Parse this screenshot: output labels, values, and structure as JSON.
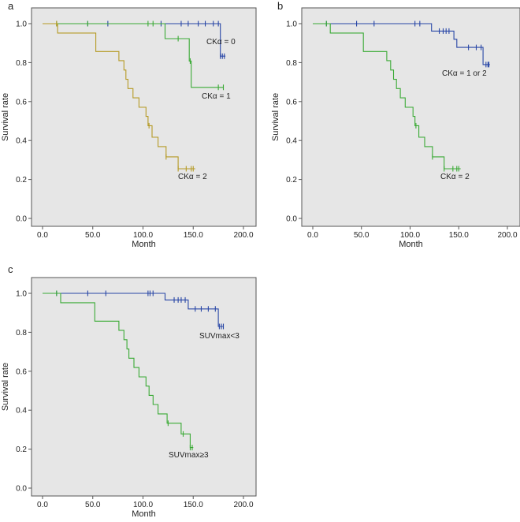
{
  "chart_data": [
    {
      "type": "line",
      "panel_label": "a",
      "xlabel": "Month",
      "ylabel": "Survival rate",
      "xlim": [
        0,
        200
      ],
      "ylim": [
        0,
        1
      ],
      "x_ticks": [
        "0.0",
        "50.0",
        "100.0",
        "150.0",
        "200.0"
      ],
      "y_ticks": [
        "0.0",
        "0.2",
        "0.4",
        "0.6",
        "0.8",
        "1.0"
      ],
      "grid": false,
      "series": [
        {
          "label": "CKα = 0",
          "color": "#2846a6",
          "steps": [
            [
              0,
              1.0
            ],
            [
              177,
              1.0
            ],
            [
              177,
              0.833
            ],
            [
              182,
              0.833
            ]
          ],
          "censors": [
            [
              45,
              1.0
            ],
            [
              65,
              1.0
            ],
            [
              118,
              1.0
            ],
            [
              138,
              1.0
            ],
            [
              145,
              1.0
            ],
            [
              155,
              1.0
            ],
            [
              162,
              1.0
            ],
            [
              170,
              1.0
            ],
            [
              175,
              1.0
            ],
            [
              177,
              0.833
            ],
            [
              179,
              0.833
            ],
            [
              181,
              0.833
            ]
          ]
        },
        {
          "label": "CKα = 1",
          "color": "#3aaa35",
          "steps": [
            [
              0,
              1.0
            ],
            [
              122,
              1.0
            ],
            [
              122,
              0.923
            ],
            [
              146,
              0.923
            ],
            [
              146,
              0.808
            ],
            [
              148,
              0.808
            ],
            [
              148,
              0.673
            ],
            [
              180,
              0.673
            ]
          ],
          "censors": [
            [
              14,
              1.0
            ],
            [
              45,
              1.0
            ],
            [
              105,
              1.0
            ],
            [
              110,
              1.0
            ],
            [
              135,
              0.923
            ],
            [
              147,
              0.808
            ],
            [
              175,
              0.673
            ],
            [
              180,
              0.673
            ]
          ]
        },
        {
          "label": "CKα = 2",
          "color": "#b59a25",
          "steps": [
            [
              0,
              1.0
            ],
            [
              15,
              1.0
            ],
            [
              15,
              0.952
            ],
            [
              53,
              0.952
            ],
            [
              53,
              0.857
            ],
            [
              76,
              0.857
            ],
            [
              76,
              0.81
            ],
            [
              81,
              0.81
            ],
            [
              81,
              0.762
            ],
            [
              83,
              0.762
            ],
            [
              83,
              0.714
            ],
            [
              85,
              0.714
            ],
            [
              85,
              0.667
            ],
            [
              90,
              0.667
            ],
            [
              90,
              0.619
            ],
            [
              96,
              0.619
            ],
            [
              96,
              0.571
            ],
            [
              103,
              0.571
            ],
            [
              103,
              0.524
            ],
            [
              105,
              0.524
            ],
            [
              105,
              0.476
            ],
            [
              109,
              0.476
            ],
            [
              109,
              0.417
            ],
            [
              115,
              0.417
            ],
            [
              115,
              0.369
            ],
            [
              123,
              0.369
            ],
            [
              123,
              0.316
            ],
            [
              135,
              0.316
            ],
            [
              135,
              0.255
            ],
            [
              152,
              0.255
            ]
          ],
          "censors": [
            [
              14,
              1.0
            ],
            [
              106,
              0.476
            ],
            [
              123,
              0.316
            ],
            [
              135,
              0.255
            ],
            [
              143,
              0.255
            ],
            [
              148,
              0.255
            ],
            [
              150,
              0.255
            ]
          ]
        }
      ]
    },
    {
      "type": "line",
      "panel_label": "b",
      "xlabel": "Month",
      "ylabel": "Survival rate",
      "xlim": [
        0,
        200
      ],
      "ylim": [
        0,
        1
      ],
      "x_ticks": [
        "0.0",
        "50.0",
        "100.0",
        "150.0",
        "200.0"
      ],
      "y_ticks": [
        "0.0",
        "0.2",
        "0.4",
        "0.6",
        "0.8",
        "1.0"
      ],
      "grid": false,
      "series": [
        {
          "label": "CKα = 1 or 2",
          "color": "#2846a6",
          "steps": [
            [
              0,
              1.0
            ],
            [
              122,
              1.0
            ],
            [
              122,
              0.962
            ],
            [
              145,
              0.962
            ],
            [
              145,
              0.92
            ],
            [
              148,
              0.92
            ],
            [
              148,
              0.878
            ],
            [
              175,
              0.878
            ],
            [
              175,
              0.79
            ],
            [
              182,
              0.79
            ]
          ],
          "censors": [
            [
              14,
              1.0
            ],
            [
              45,
              1.0
            ],
            [
              63,
              1.0
            ],
            [
              105,
              1.0
            ],
            [
              110,
              1.0
            ],
            [
              130,
              0.962
            ],
            [
              134,
              0.962
            ],
            [
              137,
              0.962
            ],
            [
              140,
              0.962
            ],
            [
              160,
              0.878
            ],
            [
              168,
              0.878
            ],
            [
              173,
              0.878
            ],
            [
              178,
              0.79
            ],
            [
              180,
              0.79
            ],
            [
              181,
              0.79
            ]
          ]
        },
        {
          "label": "CKα = 2",
          "color": "#3aaa35",
          "steps": [
            [
              0,
              1.0
            ],
            [
              18,
              1.0
            ],
            [
              18,
              0.952
            ],
            [
              52,
              0.952
            ],
            [
              52,
              0.857
            ],
            [
              76,
              0.857
            ],
            [
              76,
              0.81
            ],
            [
              80,
              0.81
            ],
            [
              80,
              0.762
            ],
            [
              83,
              0.762
            ],
            [
              83,
              0.714
            ],
            [
              86,
              0.714
            ],
            [
              86,
              0.667
            ],
            [
              90,
              0.667
            ],
            [
              90,
              0.619
            ],
            [
              95,
              0.619
            ],
            [
              95,
              0.571
            ],
            [
              103,
              0.571
            ],
            [
              103,
              0.524
            ],
            [
              105,
              0.524
            ],
            [
              105,
              0.476
            ],
            [
              109,
              0.476
            ],
            [
              109,
              0.417
            ],
            [
              115,
              0.417
            ],
            [
              115,
              0.369
            ],
            [
              123,
              0.369
            ],
            [
              123,
              0.316
            ],
            [
              135,
              0.316
            ],
            [
              135,
              0.255
            ],
            [
              152,
              0.255
            ]
          ],
          "censors": [
            [
              14,
              1.0
            ],
            [
              106,
              0.476
            ],
            [
              123,
              0.316
            ],
            [
              135,
              0.255
            ],
            [
              144,
              0.255
            ],
            [
              148,
              0.255
            ],
            [
              150,
              0.255
            ]
          ]
        }
      ]
    },
    {
      "type": "line",
      "panel_label": "c",
      "xlabel": "Month",
      "ylabel": "Survival rate",
      "xlim": [
        0,
        200
      ],
      "ylim": [
        0,
        1
      ],
      "x_ticks": [
        "0.0",
        "50.0",
        "100.0",
        "150.0",
        "200.0"
      ],
      "y_ticks": [
        "0.0",
        "0.2",
        "0.4",
        "0.6",
        "0.8",
        "1.0"
      ],
      "grid": false,
      "series": [
        {
          "label": "SUVmax<3",
          "color": "#2846a6",
          "steps": [
            [
              0,
              1.0
            ],
            [
              122,
              1.0
            ],
            [
              122,
              0.966
            ],
            [
              145,
              0.966
            ],
            [
              145,
              0.92
            ],
            [
              175,
              0.92
            ],
            [
              175,
              0.83
            ],
            [
              180,
              0.83
            ]
          ],
          "censors": [
            [
              14,
              1.0
            ],
            [
              45,
              1.0
            ],
            [
              63,
              1.0
            ],
            [
              105,
              1.0
            ],
            [
              107,
              1.0
            ],
            [
              110,
              1.0
            ],
            [
              131,
              0.966
            ],
            [
              135,
              0.966
            ],
            [
              138,
              0.966
            ],
            [
              142,
              0.966
            ],
            [
              152,
              0.92
            ],
            [
              158,
              0.92
            ],
            [
              165,
              0.92
            ],
            [
              172,
              0.92
            ],
            [
              176,
              0.83
            ],
            [
              178,
              0.83
            ],
            [
              180,
              0.83
            ]
          ]
        },
        {
          "label": "SUVmax≥3",
          "color": "#3aaa35",
          "steps": [
            [
              0,
              1.0
            ],
            [
              18,
              1.0
            ],
            [
              18,
              0.952
            ],
            [
              52,
              0.952
            ],
            [
              52,
              0.857
            ],
            [
              76,
              0.857
            ],
            [
              76,
              0.81
            ],
            [
              81,
              0.81
            ],
            [
              81,
              0.762
            ],
            [
              84,
              0.762
            ],
            [
              84,
              0.714
            ],
            [
              86,
              0.714
            ],
            [
              86,
              0.667
            ],
            [
              91,
              0.667
            ],
            [
              91,
              0.619
            ],
            [
              96,
              0.619
            ],
            [
              96,
              0.571
            ],
            [
              103,
              0.571
            ],
            [
              103,
              0.524
            ],
            [
              106,
              0.524
            ],
            [
              106,
              0.476
            ],
            [
              110,
              0.476
            ],
            [
              110,
              0.429
            ],
            [
              115,
              0.429
            ],
            [
              115,
              0.381
            ],
            [
              124,
              0.381
            ],
            [
              124,
              0.333
            ],
            [
              138,
              0.333
            ],
            [
              138,
              0.278
            ],
            [
              147,
              0.278
            ],
            [
              147,
              0.208
            ],
            [
              150,
              0.208
            ]
          ],
          "censors": [
            [
              14,
              1.0
            ],
            [
              125,
              0.333
            ],
            [
              140,
              0.278
            ],
            [
              147,
              0.208
            ],
            [
              149,
              0.208
            ]
          ]
        }
      ]
    }
  ]
}
